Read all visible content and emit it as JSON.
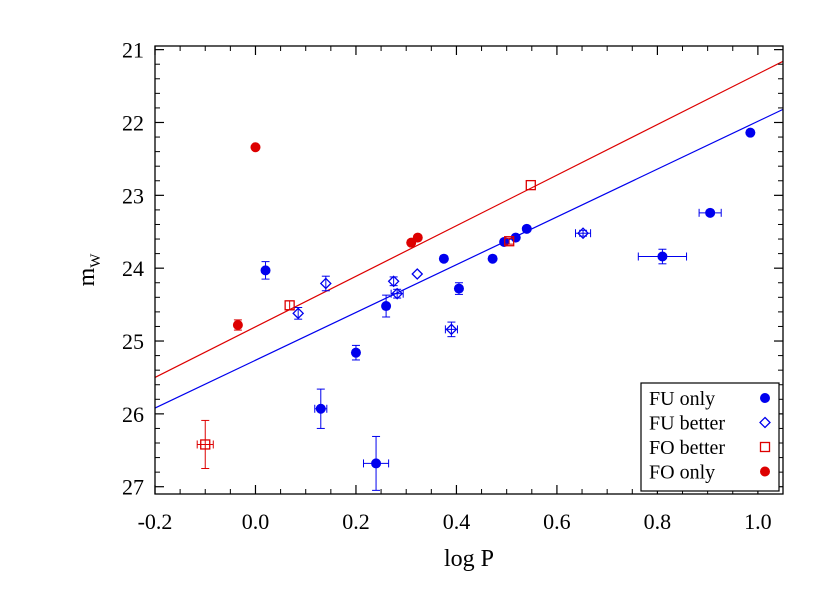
{
  "chart_data": {
    "type": "scatter",
    "xlabel": "log P",
    "ylabel": "m",
    "ylabel_sub": "W",
    "xlim": [
      -0.2,
      1.05
    ],
    "ylim": [
      27.1,
      20.95
    ],
    "y_inverted": true,
    "xticks": [
      -0.2,
      0.0,
      0.2,
      0.4,
      0.6,
      0.8,
      1.0
    ],
    "xtick_labels": [
      "-0.2",
      "0.0",
      "0.2",
      "0.4",
      "0.6",
      "0.8",
      "1.0"
    ],
    "yticks": [
      21,
      22,
      23,
      24,
      25,
      26,
      27
    ],
    "ytick_labels": [
      "21",
      "22",
      "23",
      "24",
      "25",
      "26",
      "27"
    ],
    "legend_position": "bottom-right",
    "colors": {
      "blue": "#0000ee",
      "red": "#dd0000"
    },
    "series": [
      {
        "name": "FU only",
        "marker": "filled-circle",
        "color": "#0000ee",
        "points": [
          {
            "x": 0.02,
            "y": 24.03,
            "xerr": 0.0,
            "yerr": 0.12
          },
          {
            "x": 0.13,
            "y": 25.93,
            "xerr": 0.012,
            "yerr": 0.27
          },
          {
            "x": 0.2,
            "y": 25.16,
            "xerr": 0.0,
            "yerr": 0.1
          },
          {
            "x": 0.24,
            "y": 26.68,
            "xerr": 0.025,
            "yerr": 0.37
          },
          {
            "x": 0.26,
            "y": 24.52,
            "xerr": 0.0,
            "yerr": 0.15
          },
          {
            "x": 0.375,
            "y": 23.87,
            "xerr": 0.0,
            "yerr": 0.03
          },
          {
            "x": 0.405,
            "y": 24.28,
            "xerr": 0.0,
            "yerr": 0.08
          },
          {
            "x": 0.472,
            "y": 23.87,
            "xerr": 0.0,
            "yerr": 0.0
          },
          {
            "x": 0.495,
            "y": 23.64,
            "xerr": 0.0,
            "yerr": 0.0
          },
          {
            "x": 0.518,
            "y": 23.58,
            "xerr": 0.0,
            "yerr": 0.0
          },
          {
            "x": 0.54,
            "y": 23.46,
            "xerr": 0.0,
            "yerr": 0.0
          },
          {
            "x": 0.81,
            "y": 23.84,
            "xerr": 0.048,
            "yerr": 0.1
          },
          {
            "x": 0.905,
            "y": 23.24,
            "xerr": 0.022,
            "yerr": 0.0
          },
          {
            "x": 0.985,
            "y": 22.14,
            "xerr": 0.0,
            "yerr": 0.0
          }
        ]
      },
      {
        "name": "FU better",
        "marker": "open-diamond",
        "color": "#0000ee",
        "points": [
          {
            "x": 0.085,
            "y": 24.62,
            "xerr": 0.0,
            "yerr": 0.08
          },
          {
            "x": 0.14,
            "y": 24.21,
            "xerr": 0.0,
            "yerr": 0.1
          },
          {
            "x": 0.275,
            "y": 24.18,
            "xerr": 0.0,
            "yerr": 0.06
          },
          {
            "x": 0.282,
            "y": 24.35,
            "xerr": 0.012,
            "yerr": 0.06
          },
          {
            "x": 0.322,
            "y": 24.08,
            "xerr": 0.0,
            "yerr": 0.0
          },
          {
            "x": 0.39,
            "y": 24.84,
            "xerr": 0.012,
            "yerr": 0.1
          },
          {
            "x": 0.652,
            "y": 23.52,
            "xerr": 0.015,
            "yerr": 0.04
          }
        ]
      },
      {
        "name": "FO better",
        "marker": "open-square",
        "color": "#dd0000",
        "points": [
          {
            "x": -0.1,
            "y": 26.42,
            "xerr": 0.016,
            "yerr": 0.33
          },
          {
            "x": 0.068,
            "y": 24.51,
            "xerr": 0.0,
            "yerr": 0.06
          },
          {
            "x": 0.505,
            "y": 23.63,
            "xerr": 0.0,
            "yerr": 0.04
          },
          {
            "x": 0.548,
            "y": 22.86,
            "xerr": 0.0,
            "yerr": 0.0
          }
        ]
      },
      {
        "name": "FO only",
        "marker": "filled-circle",
        "color": "#dd0000",
        "points": [
          {
            "x": -0.035,
            "y": 24.78,
            "xerr": 0.0,
            "yerr": 0.07
          },
          {
            "x": 0.0,
            "y": 22.34,
            "xerr": 0.0,
            "yerr": 0.0
          },
          {
            "x": 0.31,
            "y": 23.65,
            "xerr": 0.0,
            "yerr": 0.0
          },
          {
            "x": 0.323,
            "y": 23.58,
            "xerr": 0.0,
            "yerr": 0.0
          }
        ]
      }
    ],
    "fit_lines": [
      {
        "color": "#dd0000",
        "x": [
          -0.2,
          1.05
        ],
        "y": [
          25.5,
          21.16
        ]
      },
      {
        "color": "#0000ee",
        "x": [
          -0.2,
          1.05
        ],
        "y": [
          25.92,
          21.82
        ]
      }
    ]
  }
}
